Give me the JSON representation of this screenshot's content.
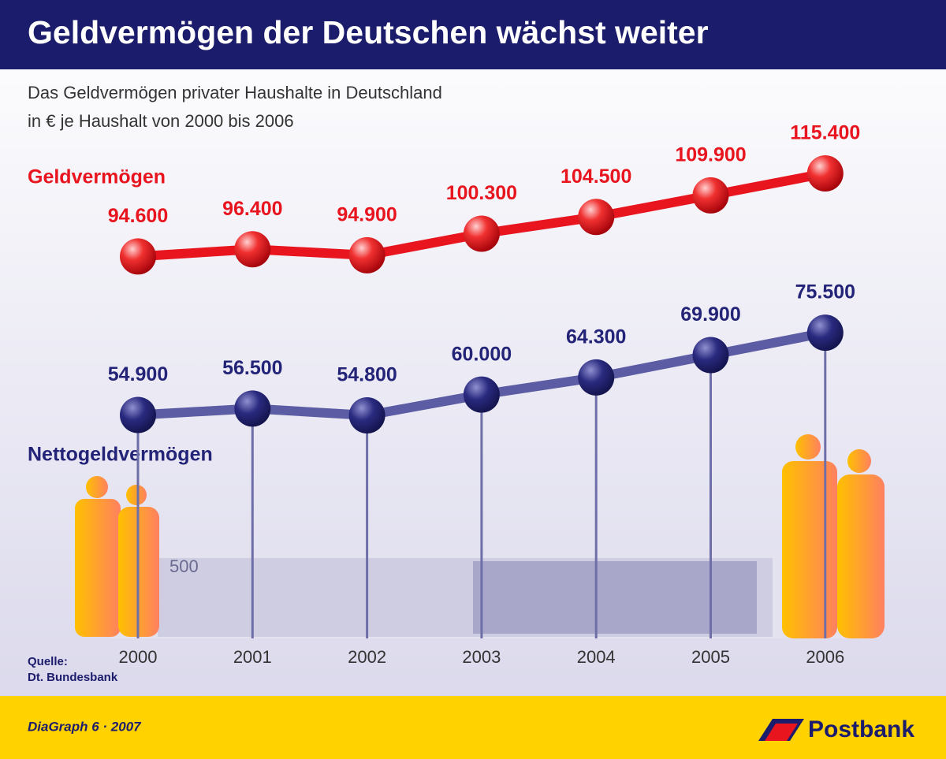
{
  "chart_data": {
    "type": "line",
    "title": "Geldvermögen der Deutschen wächst weiter",
    "subtitle": [
      "Das Geldvermögen privater Haushalte in Deutschland",
      "in € je Haushalt von 2000 bis 2006"
    ],
    "categories": [
      "2000",
      "2001",
      "2002",
      "2003",
      "2004",
      "2005",
      "2006"
    ],
    "series": [
      {
        "name": "Geldvermögen",
        "color": "#e8141e",
        "values": [
          94600,
          96400,
          94900,
          100300,
          104500,
          109900,
          115400
        ],
        "value_labels": [
          "94.600",
          "96.400",
          "94.900",
          "100.300",
          "104.500",
          "109.900",
          "115.400"
        ]
      },
      {
        "name": "Nettogeldvermögen",
        "color": "#232378",
        "values": [
          54900,
          56500,
          54800,
          60000,
          64300,
          69900,
          75500
        ],
        "value_labels": [
          "54.900",
          "56.500",
          "54.800",
          "60.000",
          "64.300",
          "69.900",
          "75.500"
        ]
      }
    ],
    "source": [
      "Quelle:",
      "Dt. Bundesbank"
    ],
    "banknote": "500"
  },
  "footer": {
    "credit": "DiaGraph 6 · 2007",
    "brand": "Postbank"
  }
}
